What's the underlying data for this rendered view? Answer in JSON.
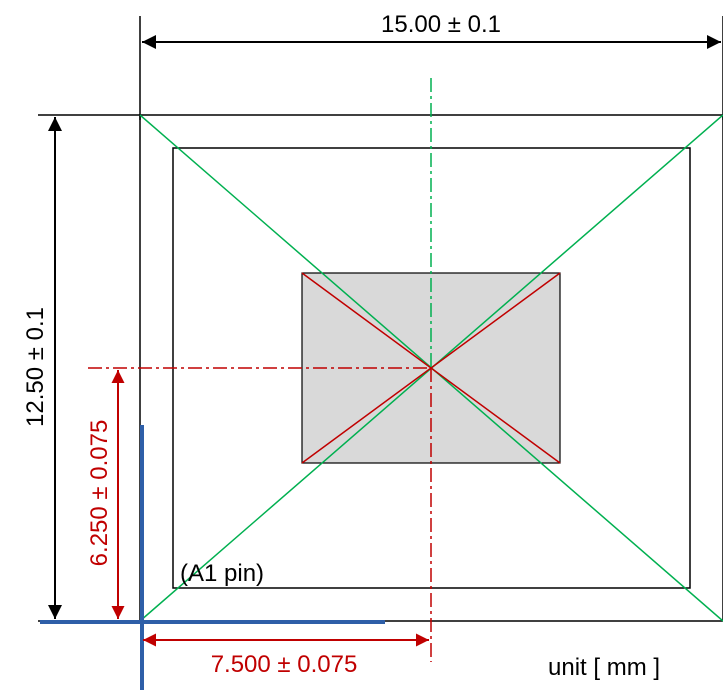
{
  "dimensions": {
    "width_label": "15.00 ± 0.1",
    "height_label": "12.50 ± 0.1",
    "center_y_label": "6.250 ± 0.075",
    "center_x_label": "7.500 ± 0.075"
  },
  "pin_label": "(A1 pin)",
  "unit_label": "unit [ mm ]",
  "colors": {
    "outline": "#000000",
    "diagonals": "#00b050",
    "center_lines": "#c00000",
    "die_fill": "#d9d9d9",
    "axis": "#2e5fa8"
  }
}
